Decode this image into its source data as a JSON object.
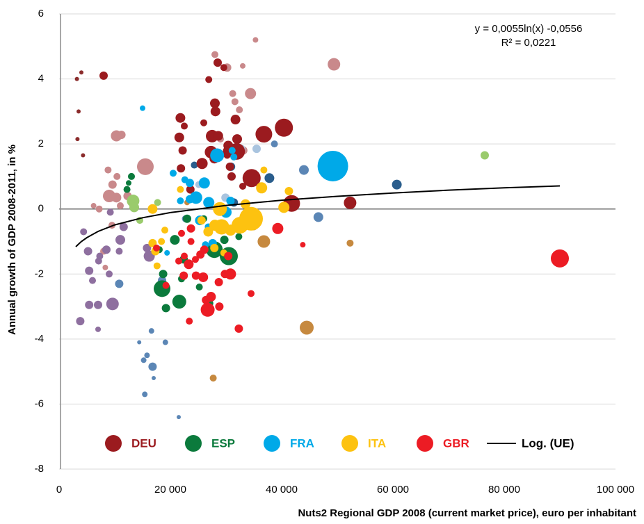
{
  "chart_data": {
    "type": "bubble",
    "x_label": "Nuts2 Regional GDP 2008 (current market price), euro per inhabitant",
    "y_label": "Annual growth of GDP 2008-2011, in %",
    "annotations": [
      "y = 0,0055ln(x) -0,0556",
      "R² = 0,0221"
    ],
    "xlim": [
      0,
      100000
    ],
    "ylim": [
      -8,
      6
    ],
    "xticks": [
      0,
      {
        "value": 20000,
        "label": "20 000"
      },
      {
        "value": 40000,
        "label": "40 000"
      },
      {
        "value": 60000,
        "label": "60 000"
      },
      {
        "value": 80000,
        "label": "80 000"
      },
      {
        "value": 100000,
        "label": "100 000"
      }
    ],
    "yticks": [
      -8,
      -6,
      -4,
      -2,
      0,
      2,
      4,
      6
    ],
    "grid": true,
    "legend": "bottom",
    "trendline": {
      "name": "Log. (UE)",
      "color": "#000000",
      "x": [
        3000,
        4000,
        5000,
        7000,
        10000,
        15000,
        20000,
        30000,
        40000,
        50000,
        60000,
        70000,
        80000,
        90000
      ],
      "y": [
        -1.16,
        -1.0,
        -0.88,
        -0.69,
        -0.49,
        -0.27,
        -0.11,
        0.11,
        0.27,
        0.39,
        0.49,
        0.58,
        0.65,
        0.71
      ]
    },
    "series": [
      {
        "color": "#c9898b",
        "x": [
          15500,
          10300,
          11200,
          9000,
          10300,
          12300,
          9600,
          8800,
          10400,
          7200,
          11000,
          8000,
          6200,
          9500,
          8300,
          28000,
          49400,
          35300,
          34400,
          33000,
          31200,
          31600,
          32400,
          30200,
          33100,
          29000
        ],
        "y": [
          1.3,
          2.25,
          2.28,
          0.4,
          0.35,
          0.4,
          0.75,
          1.2,
          1.0,
          0.0,
          0.1,
          -1.3,
          0.1,
          -0.5,
          -1.8,
          4.75,
          4.45,
          5.2,
          3.55,
          4.4,
          3.55,
          3.3,
          3.05,
          4.35,
          1.8,
          2.15
        ],
        "sizes": [
          12,
          8,
          6,
          9,
          7,
          6,
          6,
          5,
          5,
          5,
          5,
          5,
          4,
          5,
          4,
          5,
          9,
          4,
          8,
          4,
          5,
          5,
          5,
          6,
          6,
          5
        ]
      },
      {
        "color": "#8e6f9f",
        "x": [
          9600,
          16200,
          11000,
          7000,
          5400,
          3800,
          6000,
          5200,
          5400,
          7000,
          10800,
          11600,
          9200,
          4400,
          8500,
          9000,
          7100,
          7300,
          15800
        ],
        "y": [
          -2.92,
          -1.45,
          -0.95,
          -2.95,
          -2.95,
          -3.45,
          -2.2,
          -1.3,
          -1.9,
          -3.7,
          -1.3,
          -0.55,
          -0.1,
          -0.7,
          -1.25,
          -2.0,
          -1.6,
          -1.45,
          -1.2
        ],
        "sizes": [
          9,
          8,
          7,
          6,
          6,
          6,
          5,
          6,
          6,
          4,
          5,
          6,
          5,
          5,
          6,
          5,
          5,
          5,
          6
        ]
      },
      {
        "color": "#5b86b5",
        "x": [
          44000,
          46600,
          38700,
          16800,
          15800,
          15400,
          16600,
          19100,
          14400,
          21500,
          17000,
          15200,
          10800,
          18500,
          22700
        ],
        "y": [
          1.2,
          -0.25,
          2.0,
          -4.85,
          -4.5,
          -5.7,
          -3.75,
          -4.1,
          -4.1,
          -6.4,
          -5.2,
          -4.65,
          -2.3,
          -2.2,
          -0.3
        ],
        "sizes": [
          7,
          7,
          5,
          6,
          4,
          4,
          4,
          4,
          3,
          3,
          3,
          4,
          6,
          6,
          5
        ]
      },
      {
        "color": "#c6893f",
        "x": [
          44500,
          40700,
          52300,
          36800,
          27700,
          35000,
          23000
        ],
        "y": [
          -3.65,
          0.1,
          -1.05,
          -1.0,
          -5.2,
          -0.55,
          0.2
        ],
        "sizes": [
          10,
          7,
          5,
          9,
          5,
          5,
          4
        ]
      },
      {
        "color": "#2a5d8c",
        "x": [
          60700,
          37800,
          24300,
          31400,
          33600,
          30900
        ],
        "y": [
          0.75,
          0.95,
          1.35,
          0.2,
          -0.5,
          1.3
        ],
        "sizes": [
          7,
          7,
          5,
          6,
          5,
          6
        ]
      },
      {
        "color": "#8b2c2c",
        "x": [
          3200,
          4000,
          3500,
          3300,
          4300
        ],
        "y": [
          4.0,
          4.2,
          3.0,
          2.15,
          1.65
        ],
        "sizes": [
          3,
          3,
          3,
          3,
          3
        ]
      },
      {
        "color": "#9acb6c",
        "x": [
          76500,
          13300,
          13500,
          13700,
          17700,
          14500
        ],
        "y": [
          1.65,
          0.25,
          0.05,
          0.3,
          0.2,
          -0.35
        ],
        "sizes": [
          6,
          9,
          7,
          5,
          5,
          5
        ]
      },
      {
        "color": "#a9c4df",
        "x": [
          35500,
          32700,
          29900,
          25100
        ],
        "y": [
          1.85,
          1.85,
          0.35,
          0.75
        ],
        "sizes": [
          6,
          6,
          6,
          5
        ]
      },
      {
        "name": "DEU",
        "color": "#9b1b1f",
        "x": [
          40400,
          36800,
          34600,
          31900,
          41800,
          52300,
          27500,
          27300,
          28000,
          28500,
          26900,
          31700,
          28100,
          30400,
          32000,
          21800,
          21600,
          22200,
          21900,
          25700,
          27900,
          28600,
          30700,
          33000,
          23600,
          22500,
          30300,
          31000,
          29600,
          26000,
          8000,
          30200
        ],
        "y": [
          2.5,
          2.3,
          0.95,
          1.77,
          0.17,
          0.19,
          2.24,
          1.75,
          3.25,
          4.5,
          3.98,
          2.75,
          3.0,
          1.95,
          2.15,
          2.8,
          2.2,
          1.8,
          1.25,
          1.4,
          1.55,
          2.25,
          1.3,
          0.7,
          0.6,
          2.55,
          1.78,
          1.0,
          4.35,
          2.65,
          4.1,
          1.65
        ],
        "sizes": [
          13,
          12,
          13,
          12,
          12,
          9,
          9,
          9,
          7,
          6,
          5,
          7,
          7,
          7,
          7,
          7,
          7,
          6,
          6,
          8,
          7,
          7,
          6,
          5,
          6,
          5,
          7,
          6,
          5,
          5,
          6,
          5
        ]
      },
      {
        "name": "ESP",
        "color": "#0b7a3c",
        "x": [
          30500,
          27900,
          18500,
          21600,
          18700,
          19200,
          20800,
          23200,
          22400,
          25200,
          23000,
          29700,
          32300,
          13000,
          12200,
          12500,
          18000,
          22000,
          26000,
          27100
        ],
        "y": [
          -1.45,
          -1.25,
          -2.45,
          -2.85,
          -2.0,
          -3.05,
          -0.95,
          -1.7,
          -1.55,
          -2.4,
          -0.3,
          -0.95,
          -0.85,
          1.0,
          0.6,
          0.8,
          -1.25,
          -2.15,
          -0.3,
          -2.9
        ],
        "sizes": [
          13,
          12,
          12,
          10,
          6,
          6,
          7,
          6,
          6,
          5,
          6,
          6,
          5,
          5,
          5,
          4,
          5,
          5,
          5,
          5
        ]
      },
      {
        "name": "FRA",
        "color": "#00a9e8",
        "x": [
          49200,
          28400,
          26100,
          24600,
          26900,
          23500,
          25300,
          30000,
          30800,
          31100,
          31400,
          27600,
          26800,
          23500,
          22600,
          20500,
          19400,
          26300,
          29000,
          21800,
          15000
        ],
        "y": [
          1.32,
          1.65,
          0.8,
          0.35,
          0.2,
          0.3,
          -0.35,
          -0.1,
          0.25,
          1.8,
          1.6,
          -1.05,
          -0.55,
          0.8,
          0.9,
          1.1,
          -1.35,
          -1.1,
          0.05,
          0.25,
          3.1
        ],
        "sizes": [
          22,
          10,
          8,
          9,
          8,
          6,
          7,
          8,
          6,
          5,
          5,
          6,
          5,
          6,
          5,
          5,
          4,
          5,
          5,
          5,
          4
        ]
      },
      {
        "name": "ITA",
        "color": "#fdc210",
        "x": [
          34500,
          32500,
          29200,
          28000,
          26800,
          30800,
          28900,
          33500,
          40400,
          41300,
          36400,
          16800,
          17300,
          16800,
          17600,
          18400,
          19000,
          21800,
          25600,
          27900,
          36800,
          29600
        ],
        "y": [
          -0.3,
          -0.5,
          -0.55,
          -0.5,
          -0.7,
          -0.65,
          0.0,
          0.15,
          0.05,
          0.55,
          0.65,
          0.0,
          -1.3,
          -1.05,
          -1.75,
          -1.0,
          -0.65,
          0.6,
          -0.35,
          -1.2,
          1.2,
          -1.35
        ],
        "sizes": [
          17,
          12,
          11,
          8,
          7,
          8,
          10,
          7,
          8,
          6,
          8,
          7,
          6,
          6,
          5,
          5,
          5,
          5,
          6,
          6,
          5,
          5
        ]
      },
      {
        "name": "GBR",
        "color": "#ec1c24",
        "x": [
          90000,
          26700,
          30400,
          27300,
          30800,
          29800,
          28800,
          32300,
          34500,
          25900,
          24600,
          23300,
          22400,
          23400,
          21500,
          24500,
          23700,
          22000,
          25400,
          26400,
          28700,
          39300,
          43800,
          19200,
          17500,
          22500,
          23700,
          26100
        ],
        "y": [
          -1.52,
          -3.1,
          -1.45,
          -2.7,
          -2.0,
          -2.0,
          -3.0,
          -3.68,
          -2.6,
          -2.1,
          -2.05,
          -1.7,
          -2.05,
          -3.45,
          -1.6,
          -1.55,
          -1.0,
          -0.75,
          -1.4,
          -2.8,
          -2.25,
          -0.6,
          -1.1,
          -2.35,
          -1.2,
          -1.45,
          -0.6,
          -1.25
        ],
        "sizes": [
          13,
          10,
          6,
          7,
          8,
          6,
          6,
          6,
          5,
          7,
          6,
          7,
          6,
          5,
          5,
          5,
          5,
          5,
          6,
          6,
          6,
          8,
          4,
          5,
          5,
          5,
          6,
          6
        ]
      }
    ]
  }
}
